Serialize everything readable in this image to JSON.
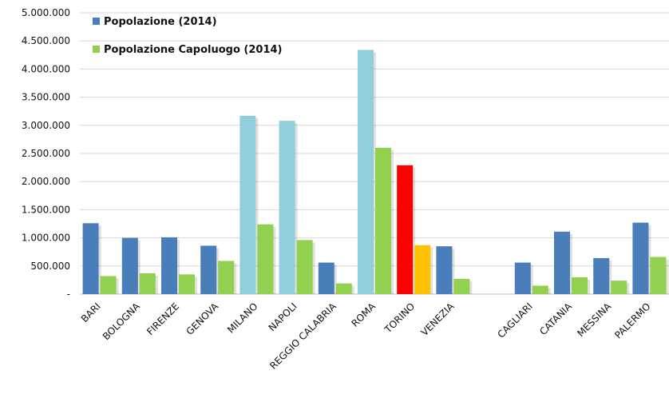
{
  "chart_data": {
    "type": "bar",
    "categories": [
      "BARI",
      "BOLOGNA",
      "FIRENZE",
      "GENOVA",
      "MILANO",
      "NAPOLI",
      "REGGIO CALABRIA",
      "ROMA",
      "TORINO",
      "VENEZIA",
      "",
      "CAGLIARI",
      "CATANIA",
      "MESSINA",
      "PALERMO"
    ],
    "series": [
      {
        "name": "Popolazione (2014)",
        "values": [
          1260000,
          1000000,
          1010000,
          860000,
          3170000,
          3080000,
          560000,
          4340000,
          2290000,
          850000,
          null,
          560000,
          1110000,
          640000,
          1270000
        ]
      },
      {
        "name": "Popolazione Capoluogo (2014)",
        "values": [
          320000,
          370000,
          350000,
          590000,
          1240000,
          960000,
          190000,
          2600000,
          870000,
          270000,
          null,
          150000,
          300000,
          240000,
          660000
        ]
      }
    ],
    "bar_colors": {
      "series0": [
        "#4a7ebb",
        "#4a7ebb",
        "#4a7ebb",
        "#4a7ebb",
        "#92cddc",
        "#92cddc",
        "#4a7ebb",
        "#92cddc",
        "#ff0000",
        "#4a7ebb",
        "#4a7ebb",
        "#4a7ebb",
        "#4a7ebb",
        "#4a7ebb",
        "#4a7ebb"
      ],
      "series1": [
        "#92d050",
        "#92d050",
        "#92d050",
        "#92d050",
        "#92d050",
        "#92d050",
        "#92d050",
        "#92d050",
        "#ffc000",
        "#92d050",
        "#92d050",
        "#92d050",
        "#92d050",
        "#92d050",
        "#92d050"
      ]
    },
    "legend_colors": [
      "#4a7ebb",
      "#92d050"
    ],
    "ylim": [
      0,
      5000000
    ],
    "yticks": [
      0,
      500000,
      1000000,
      1500000,
      2000000,
      2500000,
      3000000,
      3500000,
      4000000,
      4500000,
      5000000
    ],
    "ytick_labels": [
      "-",
      "500.000",
      "1.000.000",
      "1.500.000",
      "2.000.000",
      "2.500.000",
      "3.000.000",
      "3.500.000",
      "4.000.000",
      "4.500.000",
      "5.000.000"
    ],
    "grid": true,
    "legend_position": "top-left"
  }
}
